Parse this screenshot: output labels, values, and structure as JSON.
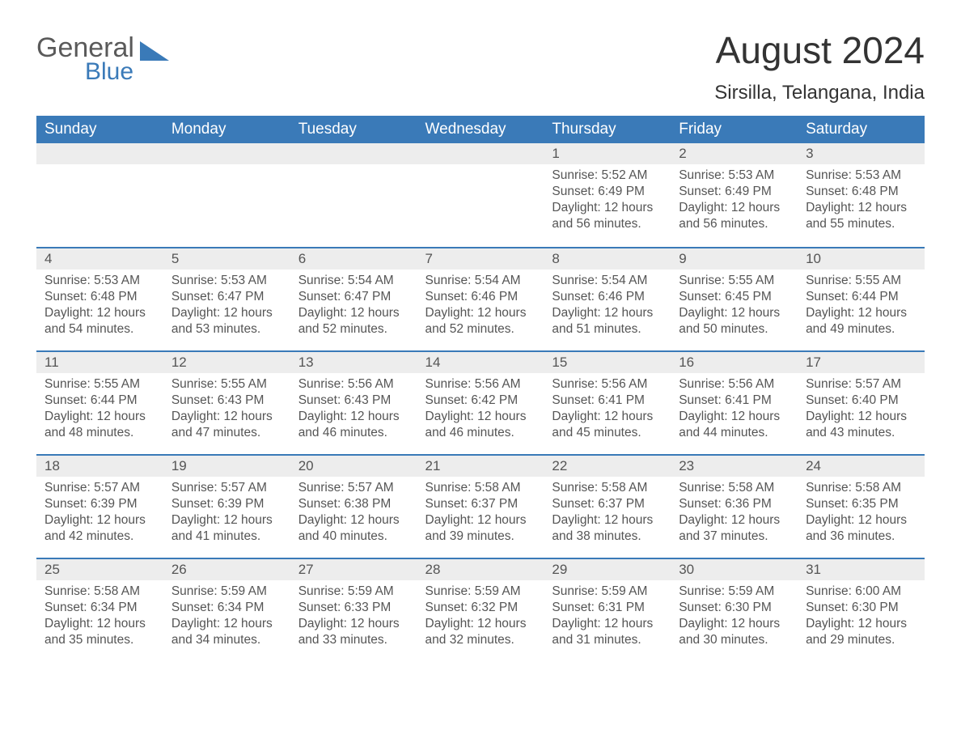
{
  "logo": {
    "text_general": "General",
    "text_blue": "Blue",
    "triangle_color": "#3a7ab8"
  },
  "title": "August 2024",
  "location": "Sirsilla, Telangana, India",
  "colors": {
    "header_bg": "#3a7ab8",
    "header_text": "#ffffff",
    "daynum_bg": "#ededed",
    "border_top": "#3a7ab8",
    "body_text": "#555555",
    "page_bg": "#ffffff"
  },
  "day_names": [
    "Sunday",
    "Monday",
    "Tuesday",
    "Wednesday",
    "Thursday",
    "Friday",
    "Saturday"
  ],
  "weeks": [
    [
      {
        "day": "",
        "sunrise": "",
        "sunset": "",
        "daylight": ""
      },
      {
        "day": "",
        "sunrise": "",
        "sunset": "",
        "daylight": ""
      },
      {
        "day": "",
        "sunrise": "",
        "sunset": "",
        "daylight": ""
      },
      {
        "day": "",
        "sunrise": "",
        "sunset": "",
        "daylight": ""
      },
      {
        "day": "1",
        "sunrise": "Sunrise: 5:52 AM",
        "sunset": "Sunset: 6:49 PM",
        "daylight": "Daylight: 12 hours and 56 minutes."
      },
      {
        "day": "2",
        "sunrise": "Sunrise: 5:53 AM",
        "sunset": "Sunset: 6:49 PM",
        "daylight": "Daylight: 12 hours and 56 minutes."
      },
      {
        "day": "3",
        "sunrise": "Sunrise: 5:53 AM",
        "sunset": "Sunset: 6:48 PM",
        "daylight": "Daylight: 12 hours and 55 minutes."
      }
    ],
    [
      {
        "day": "4",
        "sunrise": "Sunrise: 5:53 AM",
        "sunset": "Sunset: 6:48 PM",
        "daylight": "Daylight: 12 hours and 54 minutes."
      },
      {
        "day": "5",
        "sunrise": "Sunrise: 5:53 AM",
        "sunset": "Sunset: 6:47 PM",
        "daylight": "Daylight: 12 hours and 53 minutes."
      },
      {
        "day": "6",
        "sunrise": "Sunrise: 5:54 AM",
        "sunset": "Sunset: 6:47 PM",
        "daylight": "Daylight: 12 hours and 52 minutes."
      },
      {
        "day": "7",
        "sunrise": "Sunrise: 5:54 AM",
        "sunset": "Sunset: 6:46 PM",
        "daylight": "Daylight: 12 hours and 52 minutes."
      },
      {
        "day": "8",
        "sunrise": "Sunrise: 5:54 AM",
        "sunset": "Sunset: 6:46 PM",
        "daylight": "Daylight: 12 hours and 51 minutes."
      },
      {
        "day": "9",
        "sunrise": "Sunrise: 5:55 AM",
        "sunset": "Sunset: 6:45 PM",
        "daylight": "Daylight: 12 hours and 50 minutes."
      },
      {
        "day": "10",
        "sunrise": "Sunrise: 5:55 AM",
        "sunset": "Sunset: 6:44 PM",
        "daylight": "Daylight: 12 hours and 49 minutes."
      }
    ],
    [
      {
        "day": "11",
        "sunrise": "Sunrise: 5:55 AM",
        "sunset": "Sunset: 6:44 PM",
        "daylight": "Daylight: 12 hours and 48 minutes."
      },
      {
        "day": "12",
        "sunrise": "Sunrise: 5:55 AM",
        "sunset": "Sunset: 6:43 PM",
        "daylight": "Daylight: 12 hours and 47 minutes."
      },
      {
        "day": "13",
        "sunrise": "Sunrise: 5:56 AM",
        "sunset": "Sunset: 6:43 PM",
        "daylight": "Daylight: 12 hours and 46 minutes."
      },
      {
        "day": "14",
        "sunrise": "Sunrise: 5:56 AM",
        "sunset": "Sunset: 6:42 PM",
        "daylight": "Daylight: 12 hours and 46 minutes."
      },
      {
        "day": "15",
        "sunrise": "Sunrise: 5:56 AM",
        "sunset": "Sunset: 6:41 PM",
        "daylight": "Daylight: 12 hours and 45 minutes."
      },
      {
        "day": "16",
        "sunrise": "Sunrise: 5:56 AM",
        "sunset": "Sunset: 6:41 PM",
        "daylight": "Daylight: 12 hours and 44 minutes."
      },
      {
        "day": "17",
        "sunrise": "Sunrise: 5:57 AM",
        "sunset": "Sunset: 6:40 PM",
        "daylight": "Daylight: 12 hours and 43 minutes."
      }
    ],
    [
      {
        "day": "18",
        "sunrise": "Sunrise: 5:57 AM",
        "sunset": "Sunset: 6:39 PM",
        "daylight": "Daylight: 12 hours and 42 minutes."
      },
      {
        "day": "19",
        "sunrise": "Sunrise: 5:57 AM",
        "sunset": "Sunset: 6:39 PM",
        "daylight": "Daylight: 12 hours and 41 minutes."
      },
      {
        "day": "20",
        "sunrise": "Sunrise: 5:57 AM",
        "sunset": "Sunset: 6:38 PM",
        "daylight": "Daylight: 12 hours and 40 minutes."
      },
      {
        "day": "21",
        "sunrise": "Sunrise: 5:58 AM",
        "sunset": "Sunset: 6:37 PM",
        "daylight": "Daylight: 12 hours and 39 minutes."
      },
      {
        "day": "22",
        "sunrise": "Sunrise: 5:58 AM",
        "sunset": "Sunset: 6:37 PM",
        "daylight": "Daylight: 12 hours and 38 minutes."
      },
      {
        "day": "23",
        "sunrise": "Sunrise: 5:58 AM",
        "sunset": "Sunset: 6:36 PM",
        "daylight": "Daylight: 12 hours and 37 minutes."
      },
      {
        "day": "24",
        "sunrise": "Sunrise: 5:58 AM",
        "sunset": "Sunset: 6:35 PM",
        "daylight": "Daylight: 12 hours and 36 minutes."
      }
    ],
    [
      {
        "day": "25",
        "sunrise": "Sunrise: 5:58 AM",
        "sunset": "Sunset: 6:34 PM",
        "daylight": "Daylight: 12 hours and 35 minutes."
      },
      {
        "day": "26",
        "sunrise": "Sunrise: 5:59 AM",
        "sunset": "Sunset: 6:34 PM",
        "daylight": "Daylight: 12 hours and 34 minutes."
      },
      {
        "day": "27",
        "sunrise": "Sunrise: 5:59 AM",
        "sunset": "Sunset: 6:33 PM",
        "daylight": "Daylight: 12 hours and 33 minutes."
      },
      {
        "day": "28",
        "sunrise": "Sunrise: 5:59 AM",
        "sunset": "Sunset: 6:32 PM",
        "daylight": "Daylight: 12 hours and 32 minutes."
      },
      {
        "day": "29",
        "sunrise": "Sunrise: 5:59 AM",
        "sunset": "Sunset: 6:31 PM",
        "daylight": "Daylight: 12 hours and 31 minutes."
      },
      {
        "day": "30",
        "sunrise": "Sunrise: 5:59 AM",
        "sunset": "Sunset: 6:30 PM",
        "daylight": "Daylight: 12 hours and 30 minutes."
      },
      {
        "day": "31",
        "sunrise": "Sunrise: 6:00 AM",
        "sunset": "Sunset: 6:30 PM",
        "daylight": "Daylight: 12 hours and 29 minutes."
      }
    ]
  ]
}
